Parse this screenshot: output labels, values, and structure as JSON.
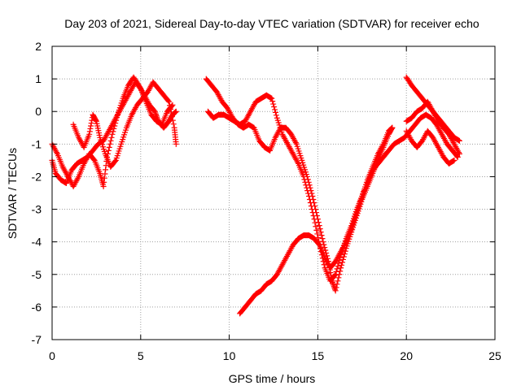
{
  "chart_data": {
    "type": "scatter",
    "title": "Day 203 of 2021, Sidereal Day-to-day VTEC variation (SDTVAR) for receiver echo",
    "xlabel": "GPS time / hours",
    "ylabel": "SDTVAR / TECUs",
    "xlim": [
      0,
      25
    ],
    "ylim": [
      -7,
      2
    ],
    "xticks": [
      "0",
      "5",
      "10",
      "15",
      "20",
      "25"
    ],
    "yticks": [
      "2",
      "1",
      "0",
      "-1",
      "-2",
      "-3",
      "-4",
      "-5",
      "-6",
      "-7"
    ],
    "grid": true,
    "marker": "plus",
    "color": "#ff0000",
    "series": [
      {
        "values": [
          [
            0.0,
            -1.0
          ],
          [
            0.3,
            -1.3
          ],
          [
            0.6,
            -1.7
          ],
          [
            0.9,
            -2.0
          ],
          [
            1.2,
            -2.3
          ],
          [
            1.5,
            -2.0
          ],
          [
            1.8,
            -1.6
          ],
          [
            2.1,
            -1.3
          ],
          [
            2.4,
            -1.5
          ],
          [
            2.7,
            -1.9
          ],
          [
            2.9,
            -2.3
          ],
          [
            3.1,
            -1.4
          ],
          [
            3.4,
            -0.7
          ],
          [
            3.7,
            -0.1
          ],
          [
            4.0,
            0.4
          ],
          [
            4.3,
            0.8
          ],
          [
            4.6,
            1.05
          ],
          [
            4.9,
            0.8
          ],
          [
            5.2,
            0.5
          ],
          [
            5.5,
            0.2
          ],
          [
            5.8,
            0.0
          ],
          [
            6.0,
            -0.3
          ],
          [
            6.3,
            -0.5
          ],
          [
            6.6,
            -0.3
          ],
          [
            6.8,
            -0.1
          ],
          [
            7.0,
            0.0
          ]
        ]
      },
      {
        "values": [
          [
            0.0,
            -1.5
          ],
          [
            0.2,
            -1.9
          ],
          [
            0.5,
            -2.1
          ],
          [
            0.8,
            -2.2
          ],
          [
            1.1,
            -1.8
          ],
          [
            1.4,
            -1.6
          ],
          [
            1.7,
            -1.5
          ],
          [
            2.0,
            -1.4
          ],
          [
            2.3,
            -1.2
          ],
          [
            2.6,
            -1.0
          ],
          [
            2.9,
            -0.9
          ],
          [
            3.2,
            -0.6
          ],
          [
            3.5,
            -0.3
          ],
          [
            3.8,
            0.0
          ],
          [
            4.1,
            0.3
          ],
          [
            4.4,
            0.6
          ],
          [
            4.7,
            0.9
          ],
          [
            5.0,
            0.7
          ],
          [
            5.3,
            0.3
          ],
          [
            5.6,
            -0.1
          ],
          [
            5.9,
            -0.3
          ],
          [
            6.2,
            -0.4
          ],
          [
            6.5,
            0.0
          ],
          [
            6.8,
            0.2
          ]
        ]
      },
      {
        "values": [
          [
            1.2,
            -0.4
          ],
          [
            1.5,
            -0.8
          ],
          [
            1.8,
            -1.1
          ],
          [
            2.1,
            -0.7
          ],
          [
            2.3,
            -0.1
          ],
          [
            2.5,
            -0.3
          ],
          [
            2.7,
            -0.8
          ],
          [
            3.0,
            -1.3
          ],
          [
            3.3,
            -1.7
          ],
          [
            3.6,
            -1.5
          ],
          [
            3.9,
            -1.0
          ],
          [
            4.2,
            -0.5
          ],
          [
            4.5,
            -0.1
          ],
          [
            4.8,
            0.2
          ],
          [
            5.1,
            0.4
          ],
          [
            5.4,
            0.6
          ],
          [
            5.7,
            0.9
          ],
          [
            6.0,
            0.7
          ],
          [
            6.3,
            0.5
          ],
          [
            6.6,
            0.3
          ],
          [
            6.9,
            -0.5
          ],
          [
            7.0,
            -1.0
          ]
        ]
      },
      {
        "values": [
          [
            8.7,
            1.0
          ],
          [
            9.0,
            0.8
          ],
          [
            9.3,
            0.6
          ],
          [
            9.6,
            0.3
          ],
          [
            9.9,
            0.1
          ],
          [
            10.2,
            -0.2
          ],
          [
            10.5,
            -0.4
          ],
          [
            10.8,
            -0.5
          ],
          [
            11.1,
            -0.4
          ],
          [
            11.4,
            -0.5
          ],
          [
            11.7,
            -0.9
          ],
          [
            12.0,
            -1.1
          ],
          [
            12.3,
            -1.2
          ],
          [
            12.6,
            -0.8
          ],
          [
            12.9,
            -0.5
          ],
          [
            13.2,
            -0.5
          ],
          [
            13.5,
            -0.7
          ],
          [
            13.8,
            -1.0
          ],
          [
            14.1,
            -1.5
          ],
          [
            14.4,
            -2.0
          ],
          [
            14.7,
            -2.6
          ],
          [
            15.0,
            -3.3
          ],
          [
            15.3,
            -4.0
          ],
          [
            15.6,
            -4.6
          ],
          [
            15.8,
            -5.2
          ],
          [
            16.0,
            -5.5
          ],
          [
            16.3,
            -4.8
          ],
          [
            16.6,
            -4.2
          ],
          [
            16.9,
            -3.7
          ],
          [
            17.2,
            -3.2
          ],
          [
            17.5,
            -2.7
          ],
          [
            17.8,
            -2.3
          ],
          [
            18.1,
            -1.9
          ],
          [
            18.4,
            -1.5
          ],
          [
            18.7,
            -1.1
          ],
          [
            19.0,
            -0.7
          ],
          [
            19.2,
            -0.5
          ]
        ]
      },
      {
        "values": [
          [
            8.8,
            0.0
          ],
          [
            9.1,
            -0.2
          ],
          [
            9.4,
            -0.1
          ],
          [
            9.7,
            -0.1
          ],
          [
            10.0,
            -0.2
          ],
          [
            10.3,
            -0.3
          ],
          [
            10.6,
            -0.4
          ],
          [
            10.9,
            -0.3
          ],
          [
            11.2,
            0.0
          ],
          [
            11.5,
            0.3
          ],
          [
            11.8,
            0.4
          ],
          [
            12.1,
            0.5
          ],
          [
            12.4,
            0.4
          ],
          [
            12.7,
            -0.2
          ],
          [
            13.0,
            -0.7
          ],
          [
            13.3,
            -1.0
          ],
          [
            13.6,
            -1.3
          ],
          [
            13.9,
            -1.6
          ],
          [
            14.2,
            -2.0
          ],
          [
            14.5,
            -2.6
          ],
          [
            14.8,
            -3.3
          ],
          [
            15.1,
            -4.1
          ],
          [
            15.4,
            -4.8
          ],
          [
            15.7,
            -5.2
          ],
          [
            16.0,
            -5.0
          ],
          [
            16.3,
            -4.4
          ],
          [
            16.6,
            -3.9
          ],
          [
            16.9,
            -3.5
          ],
          [
            17.2,
            -3.0
          ],
          [
            17.5,
            -2.6
          ],
          [
            17.8,
            -2.2
          ],
          [
            18.1,
            -1.8
          ],
          [
            18.4,
            -1.6
          ],
          [
            18.7,
            -1.4
          ],
          [
            19.0,
            -1.2
          ],
          [
            19.3,
            -1.0
          ],
          [
            19.6,
            -0.9
          ],
          [
            19.9,
            -0.8
          ],
          [
            20.2,
            -0.6
          ],
          [
            20.5,
            -0.4
          ],
          [
            20.8,
            -0.2
          ],
          [
            21.1,
            -0.1
          ],
          [
            21.4,
            -0.2
          ],
          [
            21.7,
            -0.4
          ],
          [
            22.0,
            -0.7
          ],
          [
            22.3,
            -1.0
          ],
          [
            22.6,
            -1.2
          ],
          [
            22.9,
            -1.4
          ]
        ]
      },
      {
        "values": [
          [
            10.6,
            -6.2
          ],
          [
            10.9,
            -6.0
          ],
          [
            11.2,
            -5.8
          ],
          [
            11.5,
            -5.6
          ],
          [
            11.8,
            -5.5
          ],
          [
            12.1,
            -5.3
          ],
          [
            12.4,
            -5.2
          ],
          [
            12.7,
            -5.0
          ],
          [
            13.0,
            -4.7
          ],
          [
            13.3,
            -4.4
          ],
          [
            13.6,
            -4.1
          ],
          [
            13.9,
            -3.9
          ],
          [
            14.2,
            -3.8
          ],
          [
            14.5,
            -3.8
          ],
          [
            14.8,
            -3.9
          ],
          [
            15.1,
            -4.1
          ],
          [
            15.4,
            -4.5
          ],
          [
            15.7,
            -4.8
          ],
          [
            16.0,
            -4.6
          ],
          [
            16.3,
            -4.3
          ],
          [
            16.6,
            -4.0
          ],
          [
            16.9,
            -3.6
          ],
          [
            17.2,
            -3.1
          ],
          [
            17.5,
            -2.6
          ],
          [
            17.8,
            -2.1
          ],
          [
            18.1,
            -1.7
          ],
          [
            18.4,
            -1.3
          ],
          [
            18.7,
            -1.0
          ],
          [
            19.0,
            -0.6
          ],
          [
            19.2,
            -0.5
          ]
        ]
      },
      {
        "values": [
          [
            20.0,
            1.05
          ],
          [
            20.3,
            0.8
          ],
          [
            20.6,
            0.6
          ],
          [
            20.9,
            0.4
          ],
          [
            21.2,
            0.2
          ],
          [
            21.5,
            0.0
          ],
          [
            21.8,
            -0.2
          ],
          [
            22.1,
            -0.4
          ],
          [
            22.4,
            -0.6
          ],
          [
            22.7,
            -0.8
          ],
          [
            23.0,
            -0.9
          ]
        ]
      },
      {
        "values": [
          [
            20.0,
            -0.3
          ],
          [
            20.3,
            -0.2
          ],
          [
            20.6,
            0.0
          ],
          [
            20.9,
            0.1
          ],
          [
            21.2,
            0.3
          ],
          [
            21.5,
            0.0
          ],
          [
            21.8,
            -0.3
          ],
          [
            22.1,
            -0.5
          ],
          [
            22.4,
            -0.7
          ],
          [
            22.7,
            -1.0
          ],
          [
            23.0,
            -1.3
          ]
        ]
      },
      {
        "values": [
          [
            20.0,
            -0.6
          ],
          [
            20.3,
            -0.9
          ],
          [
            20.6,
            -1.1
          ],
          [
            20.9,
            -0.9
          ],
          [
            21.2,
            -0.6
          ],
          [
            21.5,
            -0.8
          ],
          [
            21.8,
            -1.1
          ],
          [
            22.1,
            -1.4
          ],
          [
            22.4,
            -1.6
          ],
          [
            22.7,
            -1.5
          ]
        ]
      }
    ]
  }
}
